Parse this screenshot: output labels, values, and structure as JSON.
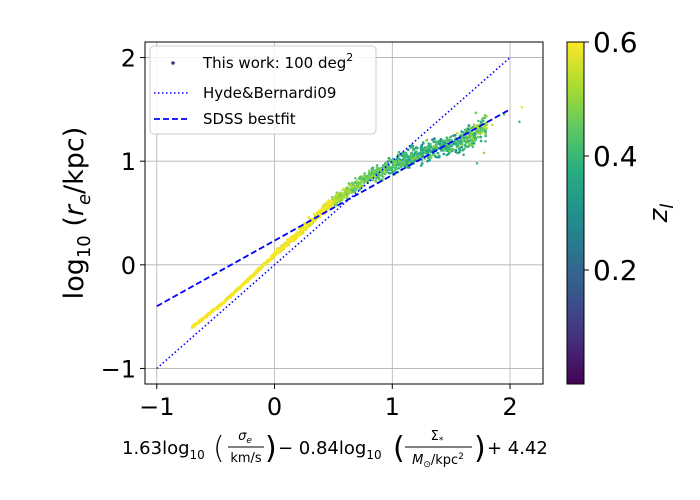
{
  "chart_data": {
    "type": "scatter",
    "title": "",
    "xlabel": "1.63log₁₀(σe / km/s) − 0.84log₁₀(Σ* / M⊙/kpc²) + 4.42",
    "xlabel_parts": {
      "coef1": "1.63log",
      "sub": "10",
      "frac1_num": "σ",
      "frac1_num_sub": "e",
      "frac1_den": "km/s",
      "minus": "− 0.84log",
      "frac2_num": "Σ",
      "frac2_num_sub": "*",
      "frac2_den": "M",
      "frac2_den_sub": "⊙",
      "frac2_den_rest": "/kpc",
      "frac2_den_sup": "2",
      "plus": "+ 4.42"
    },
    "ylabel": "log₁₀ (r_e/kpc)",
    "ylabel_parts": {
      "log": "log",
      "sub": "10",
      "open": " (",
      "r": "r",
      "r_sub": "e",
      "rest": "/kpc)"
    },
    "xlim": [
      -1.1,
      2.28
    ],
    "ylim": [
      -1.15,
      2.15
    ],
    "x_ticks": [
      -1,
      0,
      1,
      2
    ],
    "x_tick_labels": [
      "−1",
      "0",
      "1",
      "2"
    ],
    "y_ticks": [
      -1,
      0,
      1,
      2
    ],
    "y_tick_labels": [
      "−1",
      "0",
      "1",
      "2"
    ],
    "grid": true,
    "legend": {
      "location": "top-left",
      "entries": [
        {
          "label": "This work: 100 deg",
          "sup": "2",
          "style": "points",
          "color": "#453781"
        },
        {
          "label": "Hyde&Bernardi09",
          "style": "dotted",
          "color": "#0000ff"
        },
        {
          "label": "SDSS bestfit",
          "style": "dashed",
          "color": "#0000ff"
        }
      ]
    },
    "series": [
      {
        "name": "Hyde&Bernardi09",
        "kind": "line",
        "style": "dotted",
        "color": "#0000ff",
        "x": [
          -1,
          2
        ],
        "y": [
          -1,
          2
        ]
      },
      {
        "name": "SDSS bestfit",
        "kind": "line",
        "style": "dashed",
        "color": "#0000ff",
        "x": [
          -1,
          2
        ],
        "y": [
          -0.4,
          1.5
        ]
      },
      {
        "name": "This work: 100 deg²",
        "kind": "scatter_cloud",
        "color_by": "z_l",
        "approx_n_points": 6000,
        "x_range": [
          -0.75,
          2.1
        ],
        "y_range": [
          -0.65,
          1.55
        ],
        "color_range": [
          0.0,
          0.6
        ],
        "trend": "points lie along a band from (-0.75, -0.63) to (1.7, 1.25); low-x points are yellow (z~0.6), high-x points are teal/green (z~0.3-0.45)",
        "points": [
          {
            "x": -0.72,
            "y": -0.62,
            "z": 0.58
          },
          {
            "x": -0.45,
            "y": -0.38,
            "z": 0.58
          },
          {
            "x": -0.2,
            "y": -0.12,
            "z": 0.57
          },
          {
            "x": 0.0,
            "y": 0.1,
            "z": 0.56
          },
          {
            "x": 0.2,
            "y": 0.3,
            "z": 0.55
          },
          {
            "x": 0.4,
            "y": 0.52,
            "z": 0.52
          },
          {
            "x": 0.6,
            "y": 0.7,
            "z": 0.48
          },
          {
            "x": 0.8,
            "y": 0.85,
            "z": 0.44
          },
          {
            "x": 1.0,
            "y": 0.98,
            "z": 0.4
          },
          {
            "x": 1.2,
            "y": 1.08,
            "z": 0.37
          },
          {
            "x": 1.4,
            "y": 1.15,
            "z": 0.36
          },
          {
            "x": 1.6,
            "y": 1.22,
            "z": 0.38
          },
          {
            "x": 1.9,
            "y": 1.45,
            "z": 0.5
          },
          {
            "x": 2.1,
            "y": 1.52,
            "z": 0.58
          }
        ]
      }
    ],
    "colorbar": {
      "label": "z",
      "label_sub": "l",
      "range": [
        0.0,
        0.6
      ],
      "ticks": [
        0.2,
        0.4,
        0.6
      ],
      "tick_labels": [
        "0.2",
        "0.4",
        "0.6"
      ],
      "colormap": "viridis"
    }
  }
}
